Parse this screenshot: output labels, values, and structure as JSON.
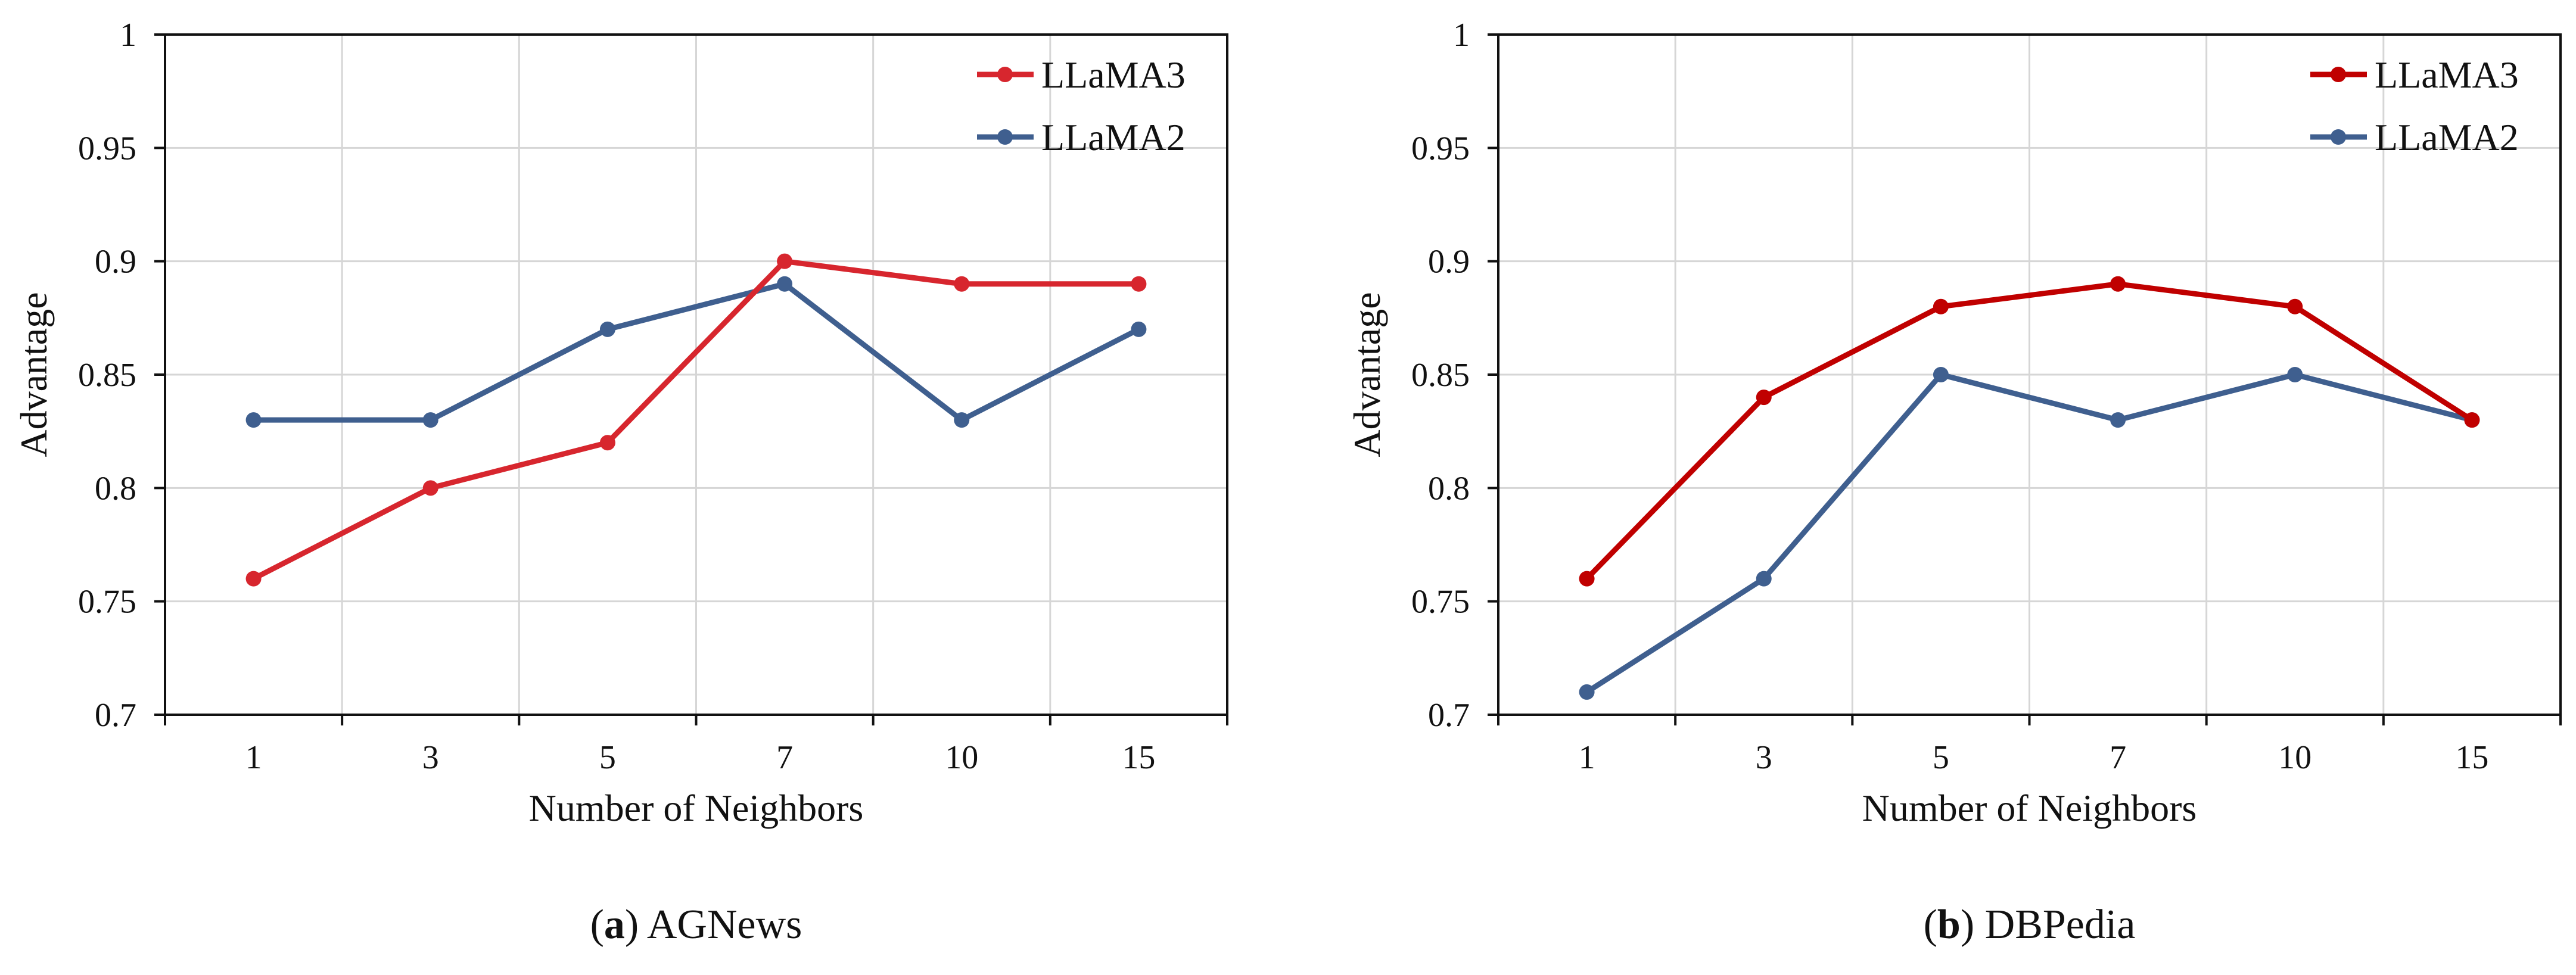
{
  "chart_data": [
    {
      "type": "line",
      "panel_letter": "a",
      "caption": "AGNews",
      "categories": [
        "1",
        "3",
        "5",
        "7",
        "10",
        "15"
      ],
      "series": [
        {
          "name": "LLaMA3",
          "color": "#d7262e",
          "values": [
            0.76,
            0.8,
            0.82,
            0.9,
            0.89,
            0.89
          ]
        },
        {
          "name": "LLaMA2",
          "color": "#3f5f8f",
          "values": [
            0.83,
            0.83,
            0.87,
            0.89,
            0.83,
            0.87
          ]
        }
      ],
      "xlabel": "Number of Neighbors",
      "ylabel": "Advantage",
      "ylim": [
        0.7,
        1.0
      ],
      "yticks": [
        "0.7",
        "0.75",
        "0.8",
        "0.85",
        "0.9",
        "0.95",
        "1"
      ],
      "grid": true,
      "legend": "top-right"
    },
    {
      "type": "line",
      "panel_letter": "b",
      "caption": "DBPedia",
      "categories": [
        "1",
        "3",
        "5",
        "7",
        "10",
        "15"
      ],
      "series": [
        {
          "name": "LLaMA3",
          "color": "#c00000",
          "values": [
            0.76,
            0.84,
            0.88,
            0.89,
            0.88,
            0.83
          ]
        },
        {
          "name": "LLaMA2",
          "color": "#3f5f8f",
          "values": [
            0.71,
            0.76,
            0.85,
            0.83,
            0.85,
            0.83
          ]
        }
      ],
      "xlabel": "Number of Neighbors",
      "ylabel": "Advantage",
      "ylim": [
        0.7,
        1.0
      ],
      "yticks": [
        "0.7",
        "0.75",
        "0.8",
        "0.85",
        "0.9",
        "0.95",
        "1"
      ],
      "grid": true,
      "legend": "top-right"
    }
  ]
}
